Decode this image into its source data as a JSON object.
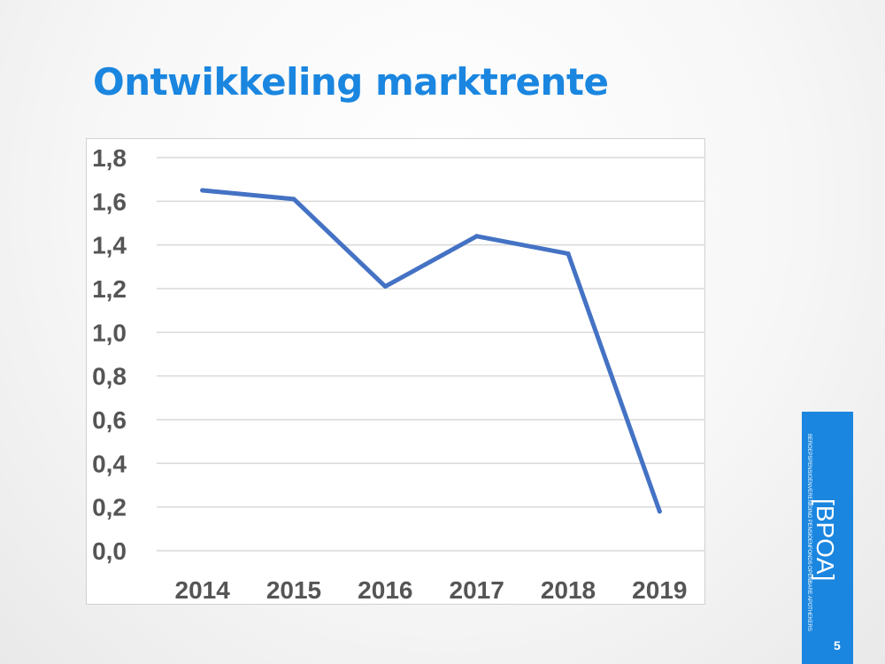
{
  "slide": {
    "title": "Ontwikkeling marktrente",
    "page_number": "5"
  },
  "branding": {
    "name": "[BPOA]",
    "tagline": "BEROEPSPENSIOENVERENIGING PENSIOENFONDS OPENBARE APOTHEKERS",
    "color": "#1a86e0"
  },
  "chart_data": {
    "type": "line",
    "title": "",
    "xlabel": "",
    "ylabel": "",
    "categories": [
      "2014",
      "2015",
      "2016",
      "2017",
      "2018",
      "2019"
    ],
    "series": [
      {
        "values": [
          1.65,
          1.61,
          1.21,
          1.44,
          1.36,
          0.18
        ],
        "color": "#4472c4"
      }
    ],
    "ylim": [
      0,
      1.8
    ],
    "y_ticks": [
      "0,0",
      "0,2",
      "0,4",
      "0,6",
      "0,8",
      "1,0",
      "1,2",
      "1,4",
      "1,6",
      "1,8"
    ],
    "grid": true,
    "legend": "none"
  }
}
